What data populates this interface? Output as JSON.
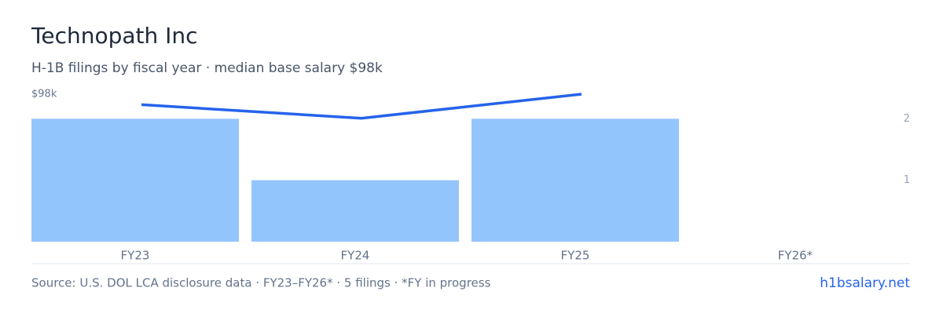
{
  "chart_data": {
    "type": "bar",
    "title": "Technopath Inc",
    "subtitle": "H-1B filings by fiscal year · median base salary $98k",
    "categories": [
      "FY23",
      "FY24",
      "FY25",
      "FY26*"
    ],
    "series": [
      {
        "type": "bar",
        "axis": "y2",
        "color": "#93c5fd",
        "values": [
          2,
          1,
          2,
          0
        ]
      },
      {
        "type": "line",
        "axis": "y",
        "color": "#2563eb",
        "values": [
          91000,
          82000,
          98000,
          null
        ]
      }
    ],
    "ylim": [
      0,
      98000
    ],
    "yticks": [
      {
        "value": 98000,
        "label": "$98k"
      }
    ],
    "y2lim": [
      0,
      2.4
    ],
    "y2ticks": [
      1,
      2
    ],
    "source": "Source: U.S. DOL LCA disclosure data · FY23–FY26* · 5 filings · *FY in progress",
    "site": "h1bsalary.net"
  }
}
